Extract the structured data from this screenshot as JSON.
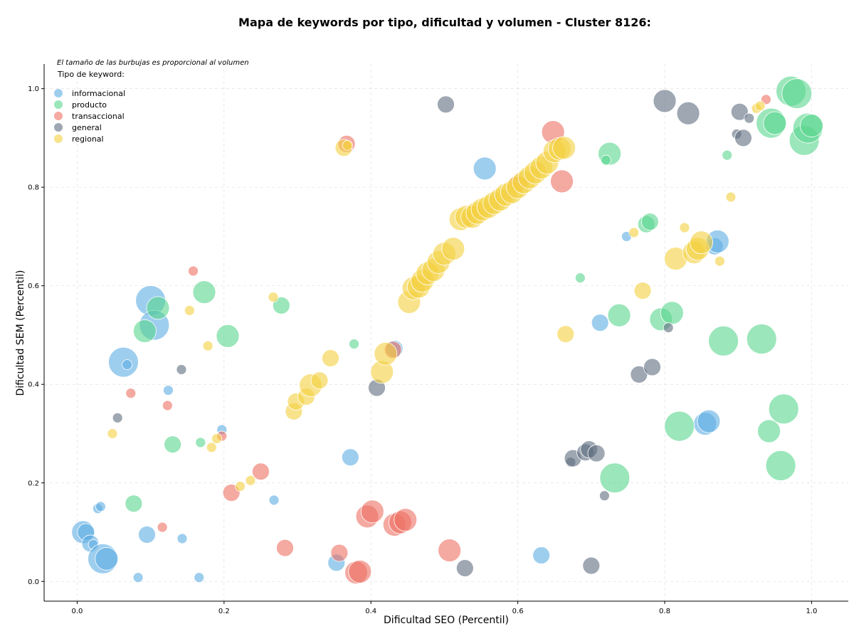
{
  "chart_data": {
    "type": "scatter",
    "title": "Mapa de keywords por tipo, dificultad y volumen - Cluster 8126:",
    "xlabel": "Dificultad SEO (Percentil)",
    "ylabel": "Dificultad SEM (Percentil)",
    "xlim": [
      -0.045,
      1.05
    ],
    "ylim": [
      -0.04,
      1.05
    ],
    "x_ticks": [
      "0.0",
      "0.2",
      "0.4",
      "0.6",
      "0.8",
      "1.0"
    ],
    "y_ticks": [
      "0.0",
      "0.2",
      "0.4",
      "0.6",
      "0.8",
      "1.0"
    ],
    "grid": true,
    "note": "El tamaño de las burbujas es proporcional al volumen",
    "legend_title": "Tipo de keyword:",
    "legend_position": "top-left",
    "series": [
      {
        "name": "informacional",
        "color": "#5DADE2",
        "points": [
          [
            0.008,
            0.1,
            3
          ],
          [
            0.012,
            0.1,
            2
          ],
          [
            0.018,
            0.077,
            2
          ],
          [
            0.022,
            0.075,
            1
          ],
          [
            0.028,
            0.148,
            1
          ],
          [
            0.032,
            0.152,
            1
          ],
          [
            0.035,
            0.046,
            4
          ],
          [
            0.04,
            0.046,
            3
          ],
          [
            0.063,
            0.445,
            4
          ],
          [
            0.068,
            0.44,
            1
          ],
          [
            0.083,
            0.008,
            1
          ],
          [
            0.095,
            0.095,
            2
          ],
          [
            0.1,
            0.57,
            4
          ],
          [
            0.105,
            0.52,
            4
          ],
          [
            0.124,
            0.388,
            1
          ],
          [
            0.143,
            0.087,
            1
          ],
          [
            0.166,
            0.008,
            1
          ],
          [
            0.197,
            0.308,
            1
          ],
          [
            0.372,
            0.252,
            2
          ],
          [
            0.353,
            0.038,
            2
          ],
          [
            0.432,
            0.472,
            2
          ],
          [
            0.555,
            0.838,
            3
          ],
          [
            0.632,
            0.053,
            2
          ],
          [
            0.712,
            0.525,
            2
          ],
          [
            0.748,
            0.7,
            1
          ],
          [
            0.855,
            0.32,
            3
          ],
          [
            0.86,
            0.325,
            3
          ],
          [
            0.868,
            0.68,
            2
          ],
          [
            0.872,
            0.69,
            3
          ],
          [
            0.268,
            0.165,
            1
          ]
        ]
      },
      {
        "name": "producto",
        "color": "#58D68D",
        "points": [
          [
            0.077,
            0.158,
            2
          ],
          [
            0.092,
            0.508,
            3
          ],
          [
            0.11,
            0.555,
            3
          ],
          [
            0.13,
            0.278,
            2
          ],
          [
            0.168,
            0.282,
            1
          ],
          [
            0.173,
            0.587,
            3
          ],
          [
            0.205,
            0.498,
            3
          ],
          [
            0.278,
            0.56,
            2
          ],
          [
            0.377,
            0.482,
            1
          ],
          [
            0.685,
            0.616,
            1
          ],
          [
            0.725,
            0.868,
            3
          ],
          [
            0.72,
            0.855,
            1
          ],
          [
            0.732,
            0.21,
            4
          ],
          [
            0.738,
            0.54,
            3
          ],
          [
            0.775,
            0.725,
            2
          ],
          [
            0.78,
            0.73,
            2
          ],
          [
            0.795,
            0.532,
            3
          ],
          [
            0.81,
            0.545,
            3
          ],
          [
            0.82,
            0.315,
            4
          ],
          [
            0.88,
            0.488,
            4
          ],
          [
            0.885,
            0.865,
            1
          ],
          [
            0.932,
            0.492,
            4
          ],
          [
            0.942,
            0.305,
            3
          ],
          [
            0.945,
            0.93,
            4
          ],
          [
            0.95,
            0.93,
            3
          ],
          [
            0.958,
            0.235,
            4
          ],
          [
            0.962,
            0.35,
            4
          ],
          [
            0.972,
            0.995,
            4
          ],
          [
            0.98,
            0.99,
            4
          ],
          [
            0.99,
            0.895,
            4
          ],
          [
            0.995,
            0.92,
            4
          ],
          [
            1.0,
            0.925,
            3
          ]
        ]
      },
      {
        "name": "transaccional",
        "color": "#EC7063",
        "points": [
          [
            0.073,
            0.382,
            1
          ],
          [
            0.116,
            0.11,
            1
          ],
          [
            0.123,
            0.357,
            1
          ],
          [
            0.158,
            0.63,
            1
          ],
          [
            0.197,
            0.295,
            1
          ],
          [
            0.21,
            0.18,
            2
          ],
          [
            0.25,
            0.223,
            2
          ],
          [
            0.283,
            0.068,
            2
          ],
          [
            0.357,
            0.058,
            2
          ],
          [
            0.38,
            0.018,
            3
          ],
          [
            0.385,
            0.02,
            3
          ],
          [
            0.395,
            0.132,
            3
          ],
          [
            0.402,
            0.142,
            3
          ],
          [
            0.432,
            0.115,
            3
          ],
          [
            0.44,
            0.12,
            3
          ],
          [
            0.447,
            0.125,
            3
          ],
          [
            0.367,
            0.888,
            2
          ],
          [
            0.43,
            0.47,
            2
          ],
          [
            0.507,
            0.063,
            3
          ],
          [
            0.6,
            0.808,
            2
          ],
          [
            0.648,
            0.912,
            3
          ],
          [
            0.66,
            0.812,
            3
          ],
          [
            0.938,
            0.978,
            1
          ]
        ]
      },
      {
        "name": "general",
        "color": "#5D6D7E",
        "points": [
          [
            0.055,
            0.332,
            1
          ],
          [
            0.142,
            0.43,
            1
          ],
          [
            0.408,
            0.393,
            2
          ],
          [
            0.502,
            0.968,
            2
          ],
          [
            0.528,
            0.027,
            2
          ],
          [
            0.672,
            0.242,
            1
          ],
          [
            0.675,
            0.25,
            2
          ],
          [
            0.692,
            0.262,
            2
          ],
          [
            0.697,
            0.268,
            2
          ],
          [
            0.707,
            0.26,
            2
          ],
          [
            0.7,
            0.032,
            2
          ],
          [
            0.718,
            0.174,
            1
          ],
          [
            0.765,
            0.42,
            2
          ],
          [
            0.783,
            0.435,
            2
          ],
          [
            0.8,
            0.975,
            3
          ],
          [
            0.805,
            0.515,
            1
          ],
          [
            0.832,
            0.95,
            3
          ],
          [
            0.898,
            0.908,
            1
          ],
          [
            0.902,
            0.953,
            2
          ],
          [
            0.907,
            0.9,
            2
          ],
          [
            0.915,
            0.94,
            1
          ]
        ]
      },
      {
        "name": "regional",
        "color": "#F4D03F",
        "points": [
          [
            0.048,
            0.3,
            1
          ],
          [
            0.153,
            0.55,
            1
          ],
          [
            0.178,
            0.478,
            1
          ],
          [
            0.183,
            0.272,
            1
          ],
          [
            0.19,
            0.29,
            1
          ],
          [
            0.222,
            0.193,
            1
          ],
          [
            0.236,
            0.205,
            1
          ],
          [
            0.267,
            0.577,
            1
          ],
          [
            0.295,
            0.345,
            2
          ],
          [
            0.298,
            0.365,
            2
          ],
          [
            0.312,
            0.375,
            2
          ],
          [
            0.318,
            0.398,
            3
          ],
          [
            0.33,
            0.408,
            2
          ],
          [
            0.345,
            0.453,
            2
          ],
          [
            0.363,
            0.88,
            2
          ],
          [
            0.368,
            0.885,
            1
          ],
          [
            0.415,
            0.425,
            3
          ],
          [
            0.42,
            0.462,
            3
          ],
          [
            0.452,
            0.567,
            3
          ],
          [
            0.458,
            0.595,
            3
          ],
          [
            0.465,
            0.598,
            3
          ],
          [
            0.47,
            0.61,
            3
          ],
          [
            0.477,
            0.625,
            3
          ],
          [
            0.485,
            0.632,
            3
          ],
          [
            0.492,
            0.648,
            3
          ],
          [
            0.5,
            0.665,
            3
          ],
          [
            0.512,
            0.675,
            3
          ],
          [
            0.522,
            0.735,
            3
          ],
          [
            0.53,
            0.74,
            3
          ],
          [
            0.538,
            0.74,
            3
          ],
          [
            0.545,
            0.748,
            3
          ],
          [
            0.552,
            0.755,
            3
          ],
          [
            0.56,
            0.76,
            3
          ],
          [
            0.568,
            0.768,
            3
          ],
          [
            0.576,
            0.775,
            3
          ],
          [
            0.584,
            0.785,
            3
          ],
          [
            0.592,
            0.79,
            3
          ],
          [
            0.6,
            0.8,
            3
          ],
          [
            0.608,
            0.81,
            3
          ],
          [
            0.616,
            0.82,
            3
          ],
          [
            0.624,
            0.83,
            3
          ],
          [
            0.632,
            0.84,
            3
          ],
          [
            0.64,
            0.85,
            3
          ],
          [
            0.65,
            0.873,
            3
          ],
          [
            0.657,
            0.878,
            3
          ],
          [
            0.663,
            0.88,
            3
          ],
          [
            0.665,
            0.502,
            2
          ],
          [
            0.758,
            0.708,
            1
          ],
          [
            0.77,
            0.59,
            2
          ],
          [
            0.827,
            0.718,
            1
          ],
          [
            0.815,
            0.655,
            3
          ],
          [
            0.84,
            0.668,
            3
          ],
          [
            0.845,
            0.675,
            3
          ],
          [
            0.85,
            0.688,
            3
          ],
          [
            0.875,
            0.65,
            1
          ],
          [
            0.89,
            0.78,
            1
          ],
          [
            0.925,
            0.96,
            1
          ],
          [
            0.93,
            0.965,
            1
          ]
        ]
      }
    ]
  }
}
